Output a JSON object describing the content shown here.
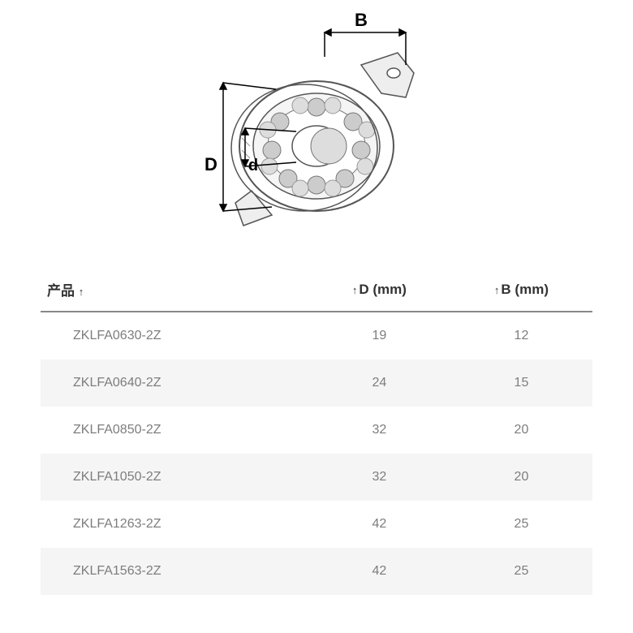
{
  "diagram": {
    "labels": {
      "B": "B",
      "D": "D",
      "d": "d"
    },
    "colors": {
      "outline": "#555555",
      "ball": "#cccccc",
      "ball_outline": "#777777",
      "hatch": "#999999",
      "dim_line": "#000000",
      "text": "#000000",
      "bg": "#ffffff"
    }
  },
  "table": {
    "sort_arrow": "↑",
    "columns": [
      {
        "key": "product",
        "label": "产品",
        "class": "col-product",
        "sortable": true
      },
      {
        "key": "D",
        "label": "D (mm)",
        "class": "col-d",
        "sortable": true
      },
      {
        "key": "B",
        "label": "B (mm)",
        "class": "col-b",
        "sortable": true
      }
    ],
    "rows": [
      {
        "product": "ZKLFA0630-2Z",
        "D": "19",
        "B": "12"
      },
      {
        "product": "ZKLFA0640-2Z",
        "D": "24",
        "B": "15"
      },
      {
        "product": "ZKLFA0850-2Z",
        "D": "32",
        "B": "20"
      },
      {
        "product": "ZKLFA1050-2Z",
        "D": "32",
        "B": "20"
      },
      {
        "product": "ZKLFA1263-2Z",
        "D": "42",
        "B": "25"
      },
      {
        "product": "ZKLFA1563-2Z",
        "D": "42",
        "B": "25"
      }
    ],
    "row_colors": {
      "odd": "#f5f5f5",
      "even": "#ffffff"
    },
    "header_border": "#888888",
    "header_text_color": "#333333",
    "cell_text_color": "#7d7d7d"
  }
}
